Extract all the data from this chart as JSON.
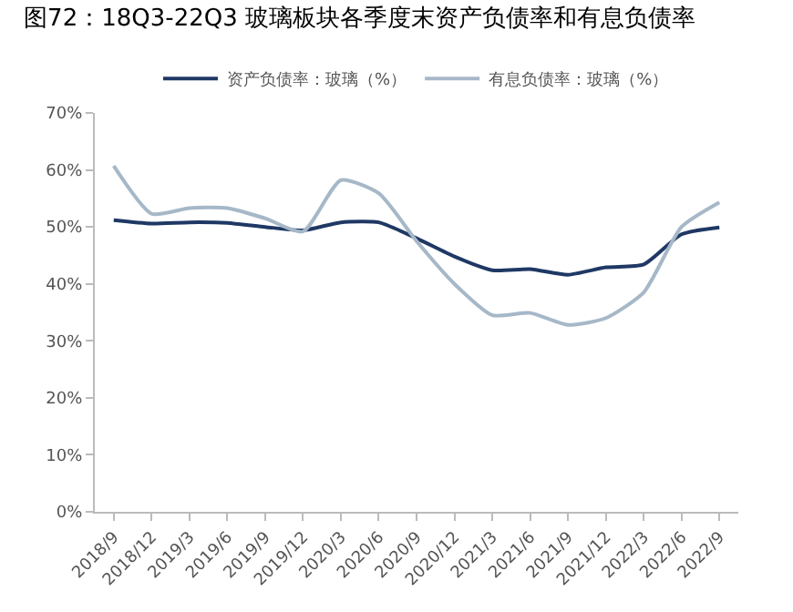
{
  "chart_data": {
    "type": "line",
    "title": "图72：18Q3-22Q3 玻璃板块各季度末资产负债率和有息负债率",
    "categories": [
      "2018/9",
      "2018/12",
      "2019/3",
      "2019/6",
      "2019/9",
      "2019/12",
      "2020/3",
      "2020/6",
      "2020/9",
      "2020/12",
      "2021/3",
      "2021/6",
      "2021/9",
      "2021/12",
      "2022/3",
      "2022/6",
      "2022/9"
    ],
    "series": [
      {
        "name": "资产负债率：玻璃（%）",
        "color": "#1f3864",
        "values": [
          51.2,
          50.6,
          50.8,
          50.7,
          50.0,
          49.4,
          50.8,
          50.8,
          48.0,
          44.8,
          42.4,
          42.6,
          41.6,
          42.9,
          43.4,
          48.7,
          49.9
        ]
      },
      {
        "name": "有息负债率：玻璃（%）",
        "color": "#a6b8c8",
        "values": [
          60.7,
          52.3,
          53.3,
          53.3,
          51.5,
          49.2,
          58.2,
          55.9,
          47.5,
          40.0,
          34.5,
          34.9,
          32.8,
          34.0,
          38.5,
          50.0,
          54.3
        ]
      }
    ],
    "ylim": [
      0,
      70
    ],
    "yticks": [
      {
        "value": 0,
        "label": "0%"
      },
      {
        "value": 10,
        "label": "10%"
      },
      {
        "value": 20,
        "label": "20%"
      },
      {
        "value": 30,
        "label": "30%"
      },
      {
        "value": 40,
        "label": "40%"
      },
      {
        "value": 50,
        "label": "50%"
      },
      {
        "value": 60,
        "label": "60%"
      },
      {
        "value": 70,
        "label": "70%"
      }
    ],
    "grid": false,
    "legend": "top",
    "marker": "none",
    "line_style": "solid"
  }
}
